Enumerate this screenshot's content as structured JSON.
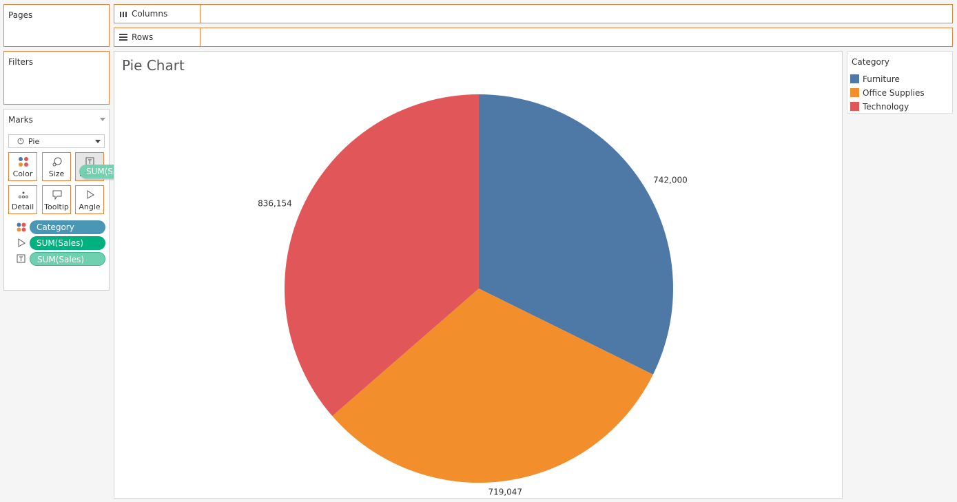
{
  "shelves": {
    "pages": "Pages",
    "filters": "Filters",
    "columns": "Columns",
    "rows": "Rows"
  },
  "marks": {
    "title": "Marks",
    "mark_type": "Pie",
    "buttons": [
      "Color",
      "Size",
      "Label",
      "Detail",
      "Tooltip",
      "Angle"
    ],
    "pills": [
      "Category",
      "SUM(Sales)",
      "SUM(Sales)"
    ],
    "dragging_pill": "SUM(Sales)"
  },
  "chart_data": {
    "type": "pie",
    "title": "Pie Chart",
    "legend_title": "Category",
    "categories": [
      "Furniture",
      "Office Supplies",
      "Technology"
    ],
    "values": [
      742000,
      719047,
      836154
    ],
    "value_labels": [
      "742,000",
      "719,047",
      "836,154"
    ],
    "colors": [
      "#4e79a7",
      "#f28e2b",
      "#e15759"
    ]
  }
}
